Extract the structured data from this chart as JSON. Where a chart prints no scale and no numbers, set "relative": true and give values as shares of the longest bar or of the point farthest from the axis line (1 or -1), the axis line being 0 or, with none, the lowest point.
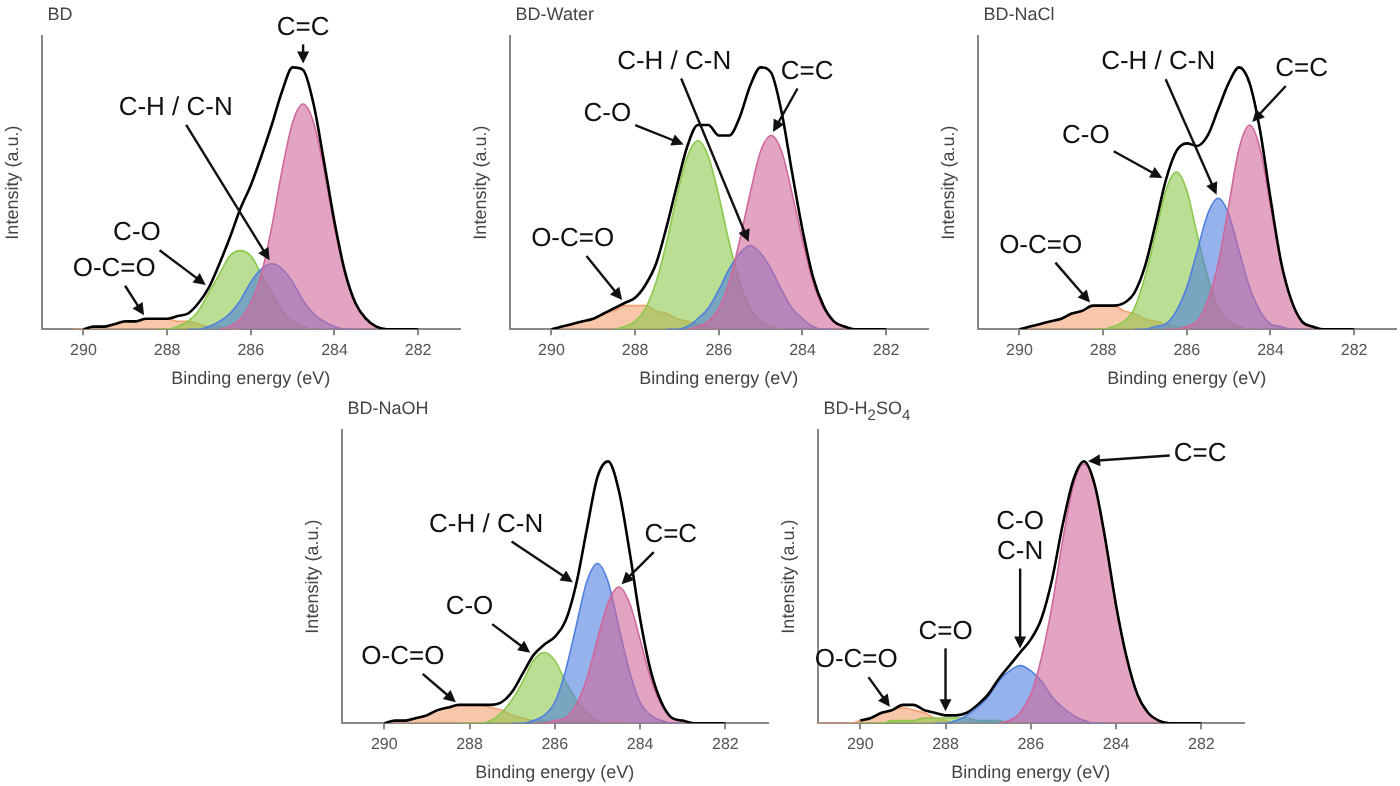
{
  "chart_data": [
    {
      "type": "area",
      "title": "BD",
      "xlabel": "Binding energy (eV)",
      "ylabel": "Intensity (a.u.)",
      "relative": true,
      "xlim": [
        291,
        281
      ],
      "xticks": [
        290,
        288,
        286,
        284,
        282
      ],
      "annotations": [
        {
          "text": "C=C",
          "x": 284.75,
          "y": 1.0
        },
        {
          "text": "C-H / C-N",
          "x": 285.5,
          "y": 0.25
        },
        {
          "text": "C-O",
          "x": 287,
          "y": 0.16
        },
        {
          "text": "O-C=O",
          "x": 288.5,
          "y": 0.04
        }
      ],
      "series": [
        {
          "color": "#f4a070",
          "x": [
            290.25,
            290,
            289.75,
            289.5,
            289.25,
            289,
            288.75,
            288.5,
            288.25,
            288,
            287.75,
            287.5,
            287.25,
            287,
            286.75,
            286.5,
            286.25
          ],
          "values": [
            0.0,
            0.0,
            0.01,
            0.01,
            0.02,
            0.03,
            0.03,
            0.04,
            0.04,
            0.04,
            0.03,
            0.03,
            0.02,
            0.01,
            0.01,
            0.0,
            0.0
          ]
        },
        {
          "color": "#8cc84b",
          "x": [
            288.25,
            288,
            287.75,
            287.5,
            287.25,
            287,
            286.75,
            286.5,
            286.25,
            286,
            285.75,
            285.5,
            285.25,
            285,
            284.75,
            284.5,
            284.25
          ],
          "values": [
            0.0,
            0.0,
            0.01,
            0.03,
            0.07,
            0.14,
            0.21,
            0.28,
            0.3,
            0.28,
            0.21,
            0.14,
            0.07,
            0.03,
            0.01,
            0.0,
            0.0
          ]
        },
        {
          "color": "#4f7fdf",
          "x": [
            287.5,
            287.25,
            287,
            286.75,
            286.5,
            286.25,
            286,
            285.75,
            285.5,
            285.25,
            285,
            284.75,
            284.5,
            284.25,
            284,
            283.75,
            283.5
          ],
          "values": [
            0.0,
            0.0,
            0.01,
            0.03,
            0.06,
            0.11,
            0.18,
            0.23,
            0.25,
            0.23,
            0.18,
            0.11,
            0.06,
            0.03,
            0.01,
            0.0,
            0.0
          ]
        },
        {
          "color": "#d0679a",
          "x": [
            286.75,
            286.5,
            286.25,
            286,
            285.75,
            285.5,
            285.25,
            285,
            284.75,
            284.5,
            284.25,
            284,
            283.75,
            283.5,
            283.25,
            283,
            282.75
          ],
          "values": [
            0.0,
            0.01,
            0.04,
            0.1,
            0.21,
            0.39,
            0.61,
            0.79,
            0.86,
            0.79,
            0.61,
            0.39,
            0.21,
            0.1,
            0.04,
            0.01,
            0.0
          ]
        },
        {
          "type": "line",
          "color": "#000000",
          "x": [
            290,
            289.75,
            289.5,
            289.25,
            289,
            288.75,
            288.5,
            288.25,
            288,
            287.75,
            287.5,
            287.25,
            287,
            286.75,
            286.5,
            286.25,
            286,
            285.75,
            285.5,
            285.25,
            285,
            284.75,
            284.5,
            284.25,
            284,
            283.75,
            283.5,
            283.25,
            283,
            282.75,
            282.5,
            282.25,
            282
          ],
          "values": [
            0.0,
            0.01,
            0.01,
            0.02,
            0.03,
            0.03,
            0.04,
            0.04,
            0.04,
            0.05,
            0.06,
            0.1,
            0.16,
            0.25,
            0.35,
            0.46,
            0.55,
            0.66,
            0.78,
            0.91,
            1.0,
            0.99,
            0.86,
            0.64,
            0.41,
            0.22,
            0.1,
            0.04,
            0.01,
            0.0,
            0.0,
            0.0,
            0.0
          ]
        }
      ]
    },
    {
      "type": "area",
      "title": "BD-Water",
      "xlabel": "Binding energy (eV)",
      "ylabel": "Intensity (a.u.)",
      "relative": true,
      "xlim": [
        291,
        281
      ],
      "xticks": [
        290,
        288,
        286,
        284,
        282
      ],
      "annotations": [
        {
          "text": "C-O",
          "x": 286.75,
          "y": 0.7
        },
        {
          "text": "C-H / C-N",
          "x": 285.25,
          "y": 0.32
        },
        {
          "text": "C=C",
          "x": 284.75,
          "y": 0.74
        },
        {
          "text": "O-C=O",
          "x": 288.25,
          "y": 0.1
        }
      ],
      "series": [
        {
          "color": "#f4a070",
          "x": [
            290,
            289.75,
            289.5,
            289.25,
            289,
            288.75,
            288.5,
            288.25,
            288,
            287.75,
            287.5,
            287.25,
            287,
            286.75,
            286.5,
            286.25,
            286
          ],
          "values": [
            0.0,
            0.01,
            0.02,
            0.03,
            0.04,
            0.06,
            0.07,
            0.09,
            0.09,
            0.09,
            0.07,
            0.06,
            0.04,
            0.03,
            0.02,
            0.01,
            0.0
          ]
        },
        {
          "color": "#8cc84b",
          "x": [
            288.5,
            288.25,
            288,
            287.75,
            287.5,
            287.25,
            287,
            286.75,
            286.5,
            286.25,
            286,
            285.75,
            285.5,
            285.25,
            285,
            284.75,
            284.5
          ],
          "values": [
            0.0,
            0.01,
            0.03,
            0.08,
            0.18,
            0.33,
            0.51,
            0.66,
            0.72,
            0.66,
            0.51,
            0.33,
            0.18,
            0.08,
            0.03,
            0.01,
            0.0
          ]
        },
        {
          "color": "#4f7fdf",
          "x": [
            287.25,
            287,
            286.75,
            286.5,
            286.25,
            286,
            285.75,
            285.5,
            285.25,
            285,
            284.75,
            284.5,
            284.25,
            284,
            283.75,
            283.5,
            283.25
          ],
          "values": [
            0.0,
            0.0,
            0.01,
            0.04,
            0.08,
            0.15,
            0.23,
            0.29,
            0.32,
            0.29,
            0.23,
            0.15,
            0.08,
            0.04,
            0.01,
            0.0,
            0.0
          ]
        },
        {
          "color": "#d0679a",
          "x": [
            286.75,
            286.5,
            286.25,
            286,
            285.75,
            285.5,
            285.25,
            285,
            284.75,
            284.5,
            284.25,
            284,
            283.75,
            283.5,
            283.25,
            283,
            282.75
          ],
          "values": [
            0.0,
            0.01,
            0.03,
            0.08,
            0.18,
            0.34,
            0.52,
            0.68,
            0.74,
            0.68,
            0.52,
            0.34,
            0.18,
            0.08,
            0.03,
            0.01,
            0.0
          ]
        },
        {
          "type": "line",
          "color": "#000000",
          "x": [
            290,
            289.75,
            289.5,
            289.25,
            289,
            288.75,
            288.5,
            288.25,
            288,
            287.75,
            287.5,
            287.25,
            287,
            286.75,
            286.5,
            286.25,
            286,
            285.75,
            285.5,
            285.25,
            285,
            284.75,
            284.5,
            284.25,
            284,
            283.75,
            283.5,
            283.25,
            283,
            282.75,
            282.5,
            282.25,
            282
          ],
          "values": [
            0.0,
            0.01,
            0.02,
            0.03,
            0.04,
            0.06,
            0.08,
            0.1,
            0.12,
            0.17,
            0.25,
            0.39,
            0.55,
            0.7,
            0.78,
            0.78,
            0.74,
            0.74,
            0.81,
            0.93,
            1.0,
            0.98,
            0.83,
            0.6,
            0.38,
            0.2,
            0.09,
            0.03,
            0.01,
            0.0,
            0.0,
            0.0,
            0.0
          ]
        }
      ]
    },
    {
      "type": "area",
      "title": "BD-NaCl",
      "xlabel": "Binding energy (eV)",
      "ylabel": "Intensity (a.u.)",
      "relative": true,
      "xlim": [
        291,
        281
      ],
      "xticks": [
        290,
        288,
        286,
        284,
        282
      ],
      "annotations": [
        {
          "text": "C-O",
          "x": 286.5,
          "y": 0.57
        },
        {
          "text": "C-H / C-N",
          "x": 285.25,
          "y": 0.5
        },
        {
          "text": "C=C",
          "x": 284.5,
          "y": 0.78
        },
        {
          "text": "O-C=O",
          "x": 288.25,
          "y": 0.09
        }
      ],
      "series": [
        {
          "color": "#f4a070",
          "x": [
            290,
            289.75,
            289.5,
            289.25,
            289,
            288.75,
            288.5,
            288.25,
            288,
            287.75,
            287.5,
            287.25,
            287,
            286.75,
            286.5,
            286.25,
            286
          ],
          "values": [
            0.0,
            0.01,
            0.02,
            0.03,
            0.04,
            0.06,
            0.07,
            0.09,
            0.09,
            0.09,
            0.07,
            0.06,
            0.04,
            0.03,
            0.02,
            0.01,
            0.0
          ]
        },
        {
          "color": "#8cc84b",
          "x": [
            288.25,
            288,
            287.75,
            287.5,
            287.25,
            287,
            286.75,
            286.5,
            286.25,
            286,
            285.75,
            285.5,
            285.25,
            285,
            284.75,
            284.5,
            284.25
          ],
          "values": [
            0.0,
            0.0,
            0.01,
            0.03,
            0.08,
            0.2,
            0.36,
            0.53,
            0.6,
            0.53,
            0.36,
            0.2,
            0.08,
            0.03,
            0.01,
            0.0,
            0.0
          ]
        },
        {
          "color": "#4f7fdf",
          "x": [
            287.25,
            287,
            286.75,
            286.5,
            286.25,
            286,
            285.75,
            285.5,
            285.25,
            285,
            284.75,
            284.5,
            284.25,
            284,
            283.75,
            283.5,
            283.25
          ],
          "values": [
            0.0,
            0.0,
            0.01,
            0.02,
            0.07,
            0.16,
            0.3,
            0.44,
            0.5,
            0.44,
            0.3,
            0.16,
            0.07,
            0.02,
            0.01,
            0.0,
            0.0
          ]
        },
        {
          "color": "#d0679a",
          "x": [
            286.5,
            286.25,
            286,
            285.75,
            285.5,
            285.25,
            285,
            284.75,
            284.5,
            284.25,
            284,
            283.75,
            283.5,
            283.25,
            283,
            282.75,
            282.5
          ],
          "values": [
            0.0,
            0.0,
            0.01,
            0.03,
            0.11,
            0.25,
            0.47,
            0.69,
            0.78,
            0.69,
            0.47,
            0.25,
            0.11,
            0.03,
            0.01,
            0.0,
            0.0
          ]
        },
        {
          "type": "line",
          "color": "#000000",
          "x": [
            290,
            289.75,
            289.5,
            289.25,
            289,
            288.75,
            288.5,
            288.25,
            288,
            287.75,
            287.5,
            287.25,
            287,
            286.75,
            286.5,
            286.25,
            286,
            285.75,
            285.5,
            285.25,
            285,
            284.75,
            284.5,
            284.25,
            284,
            283.75,
            283.5,
            283.25,
            283,
            282.75,
            282.5,
            282.25,
            282
          ],
          "values": [
            0.0,
            0.01,
            0.02,
            0.03,
            0.04,
            0.06,
            0.07,
            0.09,
            0.09,
            0.09,
            0.1,
            0.14,
            0.24,
            0.4,
            0.57,
            0.68,
            0.71,
            0.7,
            0.74,
            0.84,
            0.94,
            1.0,
            0.94,
            0.76,
            0.5,
            0.26,
            0.11,
            0.03,
            0.01,
            0.0,
            0.0,
            0.0,
            0.0
          ]
        }
      ]
    },
    {
      "type": "area",
      "title": "BD-NaOH",
      "xlabel": "Binding energy (eV)",
      "ylabel": "Intensity (a.u.)",
      "relative": true,
      "xlim": [
        291,
        281
      ],
      "xticks": [
        290,
        288,
        286,
        284,
        282
      ],
      "annotations": [
        {
          "text": "C-H / C-N",
          "x": 285.5,
          "y": 0.53
        },
        {
          "text": "C=C",
          "x": 284.5,
          "y": 0.52
        },
        {
          "text": "C-O",
          "x": 286.5,
          "y": 0.26
        },
        {
          "text": "O-C=O",
          "x": 288.25,
          "y": 0.07
        }
      ],
      "series": [
        {
          "color": "#f4a070",
          "x": [
            290,
            289.75,
            289.5,
            289.25,
            289,
            288.75,
            288.5,
            288.25,
            288,
            287.75,
            287.5,
            287.25,
            287,
            286.75,
            286.5,
            286.25,
            286
          ],
          "values": [
            0.0,
            0.01,
            0.01,
            0.02,
            0.03,
            0.05,
            0.06,
            0.07,
            0.07,
            0.07,
            0.06,
            0.05,
            0.03,
            0.02,
            0.01,
            0.01,
            0.0
          ]
        },
        {
          "color": "#8cc84b",
          "x": [
            288.25,
            288,
            287.75,
            287.5,
            287.25,
            287,
            286.75,
            286.5,
            286.25,
            286,
            285.75,
            285.5,
            285.25,
            285,
            284.75,
            284.5,
            284.25
          ],
          "values": [
            0.0,
            0.0,
            0.0,
            0.01,
            0.04,
            0.09,
            0.16,
            0.24,
            0.27,
            0.24,
            0.16,
            0.09,
            0.04,
            0.01,
            0.0,
            0.0,
            0.0
          ]
        },
        {
          "color": "#4f7fdf",
          "x": [
            287,
            286.75,
            286.5,
            286.25,
            286,
            285.75,
            285.5,
            285.25,
            285,
            284.75,
            284.5,
            284.25,
            284,
            283.75,
            283.5,
            283.25,
            283
          ],
          "values": [
            0.0,
            0.0,
            0.01,
            0.03,
            0.08,
            0.2,
            0.37,
            0.54,
            0.61,
            0.54,
            0.37,
            0.2,
            0.08,
            0.03,
            0.01,
            0.0,
            0.0
          ]
        },
        {
          "color": "#d0679a",
          "x": [
            286.5,
            286.25,
            286,
            285.75,
            285.5,
            285.25,
            285,
            284.75,
            284.5,
            284.25,
            284,
            283.75,
            283.5,
            283.25,
            283,
            282.75,
            282.5
          ],
          "values": [
            0.0,
            0.0,
            0.01,
            0.02,
            0.07,
            0.17,
            0.32,
            0.46,
            0.52,
            0.46,
            0.32,
            0.17,
            0.07,
            0.02,
            0.01,
            0.0,
            0.0
          ]
        },
        {
          "type": "line",
          "color": "#000000",
          "x": [
            290,
            289.75,
            289.5,
            289.25,
            289,
            288.75,
            288.5,
            288.25,
            288,
            287.75,
            287.5,
            287.25,
            287,
            286.75,
            286.5,
            286.25,
            286,
            285.75,
            285.5,
            285.25,
            285,
            284.75,
            284.5,
            284.25,
            284,
            283.75,
            283.5,
            283.25,
            283,
            282.75,
            282.5,
            282.25,
            282
          ],
          "values": [
            0.0,
            0.01,
            0.01,
            0.02,
            0.03,
            0.05,
            0.06,
            0.07,
            0.07,
            0.07,
            0.07,
            0.08,
            0.12,
            0.19,
            0.26,
            0.3,
            0.33,
            0.39,
            0.53,
            0.74,
            0.94,
            1.0,
            0.89,
            0.66,
            0.4,
            0.2,
            0.08,
            0.02,
            0.01,
            0.0,
            0.0,
            0.0,
            0.0
          ]
        }
      ]
    },
    {
      "type": "area",
      "title": "BD-H$_{2}$SO$_{4}$",
      "xlabel": "Binding energy (eV)",
      "ylabel": "Intensity (a.u.)",
      "relative": true,
      "xlim": [
        291,
        281
      ],
      "xticks": [
        290,
        288,
        286,
        284,
        282
      ],
      "annotations": [
        {
          "text": "C=C",
          "x": 284.75,
          "y": 1.0
        },
        {
          "text": "C-O\nC-N",
          "x": 286.25,
          "y": 0.27
        },
        {
          "text": "C=O",
          "x": 288,
          "y": 0.03
        },
        {
          "text": "O-C=O",
          "x": 289.25,
          "y": 0.05
        }
      ],
      "series": [
        {
          "color": "#f4a070",
          "x": [
            291,
            290.75,
            290.5,
            290.25,
            290,
            289.75,
            289.5,
            289.25,
            289,
            288.75,
            288.5,
            288.25,
            288,
            287.75,
            287.5,
            287.25,
            287
          ],
          "values": [
            0.0,
            0.0,
            0.0,
            0.0,
            0.01,
            0.02,
            0.04,
            0.05,
            0.06,
            0.05,
            0.04,
            0.02,
            0.01,
            0.0,
            0.0,
            0.0,
            0.0
          ]
        },
        {
          "color": "#8cc84b",
          "x": [
            290,
            289.75,
            289.5,
            289.25,
            289,
            288.75,
            288.5,
            288.25,
            288,
            287.75,
            287.5,
            287.25,
            287,
            286.75,
            286.5,
            286.25,
            286
          ],
          "values": [
            0.0,
            0.0,
            0.0,
            0.01,
            0.01,
            0.01,
            0.02,
            0.02,
            0.02,
            0.02,
            0.02,
            0.01,
            0.01,
            0.01,
            0.0,
            0.0,
            0.0
          ]
        },
        {
          "color": "#4f7fdf",
          "x": [
            288.25,
            288,
            287.75,
            287.5,
            287.25,
            287,
            286.75,
            286.5,
            286.25,
            286,
            285.75,
            285.5,
            285.25,
            285,
            284.75,
            284.5,
            284.25
          ],
          "values": [
            0.0,
            0.0,
            0.01,
            0.03,
            0.06,
            0.1,
            0.16,
            0.2,
            0.22,
            0.2,
            0.16,
            0.1,
            0.06,
            0.03,
            0.01,
            0.0,
            0.0
          ]
        },
        {
          "color": "#d0679a",
          "x": [
            286.75,
            286.5,
            286.25,
            286,
            285.75,
            285.5,
            285.25,
            285,
            284.75,
            284.5,
            284.25,
            284,
            283.75,
            283.5,
            283.25,
            283,
            282.75
          ],
          "values": [
            0.0,
            0.01,
            0.04,
            0.11,
            0.25,
            0.45,
            0.7,
            0.91,
            0.99,
            0.91,
            0.7,
            0.45,
            0.25,
            0.11,
            0.04,
            0.01,
            0.0
          ]
        },
        {
          "type": "line",
          "color": "#000000",
          "x": [
            290,
            289.75,
            289.5,
            289.25,
            289,
            288.75,
            288.5,
            288.25,
            288,
            287.75,
            287.5,
            287.25,
            287,
            286.75,
            286.5,
            286.25,
            286,
            285.75,
            285.5,
            285.25,
            285,
            284.75,
            284.5,
            284.25,
            284,
            283.75,
            283.5,
            283.25,
            283,
            282.75,
            282.5,
            282.25,
            282
          ],
          "values": [
            0.01,
            0.02,
            0.04,
            0.05,
            0.07,
            0.07,
            0.05,
            0.04,
            0.03,
            0.03,
            0.04,
            0.07,
            0.11,
            0.17,
            0.22,
            0.27,
            0.32,
            0.4,
            0.55,
            0.76,
            0.93,
            1.0,
            0.91,
            0.7,
            0.45,
            0.25,
            0.11,
            0.04,
            0.01,
            0.0,
            0.0,
            0.0,
            0.0
          ]
        }
      ]
    }
  ]
}
